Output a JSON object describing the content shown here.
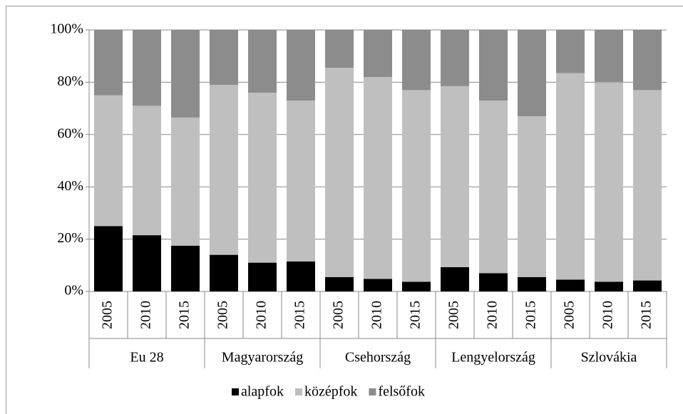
{
  "chart_data": {
    "type": "stacked_bar",
    "categories": [
      "2005",
      "2010",
      "2015",
      "2005",
      "2010",
      "2015",
      "2005",
      "2010",
      "2015",
      "2005",
      "2010",
      "2015",
      "2005",
      "2010",
      "2015"
    ],
    "category_groups": [
      "Eu 28",
      "Magyarország",
      "Csehország",
      "Lengyelország",
      "Szlovákia"
    ],
    "series": [
      {
        "name": "alapfok",
        "color": "#000000",
        "values": [
          25,
          21.5,
          17.5,
          14,
          11,
          11.5,
          5.5,
          4.8,
          3.7,
          9.3,
          7,
          5.5,
          4.5,
          3.7,
          4.2
        ]
      },
      {
        "name": "középfok",
        "color": "#bfbfbf",
        "values": [
          50,
          49.5,
          49,
          65,
          65,
          61.5,
          80,
          77.2,
          73.3,
          69.2,
          66,
          61.5,
          79,
          76.3,
          72.8
        ]
      },
      {
        "name": "felsőfok",
        "color": "#8c8c8c",
        "values": [
          25,
          29,
          33.5,
          21,
          24,
          27,
          14.5,
          18,
          23,
          21.5,
          27,
          33,
          16.5,
          20,
          23
        ]
      }
    ],
    "ylim": [
      0,
      100
    ],
    "yticks": [
      {
        "value": 0,
        "label": "0%"
      },
      {
        "value": 20,
        "label": "20%"
      },
      {
        "value": 40,
        "label": "40%"
      },
      {
        "value": 60,
        "label": "60%"
      },
      {
        "value": 80,
        "label": "80%"
      },
      {
        "value": 100,
        "label": "100%"
      }
    ],
    "grid": true,
    "legend": "bottom"
  }
}
